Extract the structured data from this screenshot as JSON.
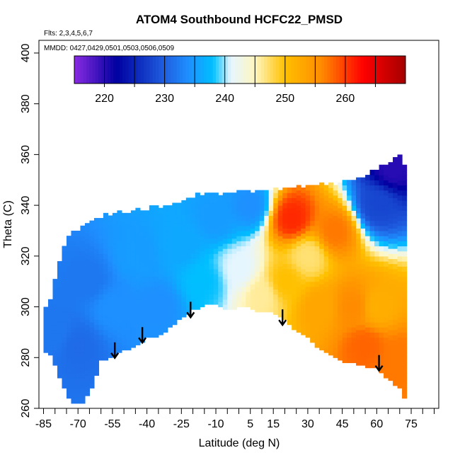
{
  "chart_data": {
    "type": "heatmap",
    "title": "ATOM4 Southbound HCFC22_PMSD",
    "subtitle_flights": "Flts: 2,3,4,5,6,7",
    "subtitle_dates": "MMDD: 0427,0429,0501,0503,0506,0509",
    "xlabel": "Latitude (deg N)",
    "ylabel": "Theta (C)",
    "xlim": [
      -87,
      87
    ],
    "ylim": [
      260,
      405
    ],
    "x_ticks": [
      -85,
      -70,
      -55,
      -40,
      -25,
      -10,
      5,
      15,
      30,
      45,
      60,
      75
    ],
    "x_minor_ticks": [
      -80,
      -75,
      -65,
      -60,
      -50,
      -45,
      -35,
      -30,
      -20,
      -15,
      -5,
      0,
      10,
      20,
      25,
      35,
      40,
      50,
      55,
      65,
      70,
      80,
      85
    ],
    "y_ticks": [
      260,
      280,
      300,
      320,
      340,
      360,
      380,
      400
    ],
    "grid": false,
    "colorbar": {
      "min": 215,
      "max": 270,
      "break_step": 5,
      "labels": [
        220,
        230,
        240,
        250,
        260
      ],
      "placement": "top"
    },
    "colors": {
      "deep_purple": "#8a2be2",
      "dark_blue": "#0000a0",
      "blue": "#1f5fe0",
      "dodger": "#1e90ff",
      "sky": "#00bfff",
      "light": "#e6f6ff",
      "pale_yellow": "#fff6c0",
      "gold": "#ffc000",
      "orange": "#ff8c00",
      "red": "#ff0000",
      "dark_red": "#a50000"
    },
    "arrow_latitudes": [
      -54,
      -42,
      -21,
      19,
      61
    ],
    "arrow_thetas": [
      286,
      292,
      302,
      299,
      281
    ],
    "domain_envelope": {
      "lat": [
        -85,
        -82,
        -80,
        -78,
        -75,
        -72,
        -68,
        -64,
        -60,
        -55,
        -50,
        -45,
        -40,
        -35,
        -30,
        -25,
        -20,
        -15,
        -10,
        -5,
        0,
        5,
        10,
        15,
        20,
        25,
        30,
        35,
        40,
        45,
        50,
        55,
        60,
        65,
        70,
        72
      ],
      "theta_bottom": [
        283,
        281,
        277,
        272,
        266,
        262,
        262,
        268,
        279,
        281,
        283,
        285,
        288,
        289,
        292,
        296,
        299,
        301,
        301,
        299,
        300,
        300,
        298,
        298,
        295,
        291,
        288,
        284,
        281,
        279,
        278,
        277,
        276,
        272,
        268,
        264
      ],
      "theta_top": [
        298,
        303,
        310,
        318,
        325,
        329,
        331,
        333,
        335,
        336,
        337,
        337,
        338,
        339,
        339,
        341,
        343,
        344,
        344,
        343,
        345,
        345,
        345,
        345,
        346,
        346,
        347,
        347,
        348,
        348,
        349,
        351,
        353,
        356,
        359,
        356
      ]
    },
    "value_field_description": "HCFC22 mixing ratio (PMSD), color-coded per colorbar",
    "field_anchors": [
      {
        "lat": -80,
        "theta": 290,
        "value": 232
      },
      {
        "lat": -70,
        "theta": 285,
        "value": 231
      },
      {
        "lat": -65,
        "theta": 310,
        "value": 232
      },
      {
        "lat": -55,
        "theta": 300,
        "value": 234
      },
      {
        "lat": -45,
        "theta": 320,
        "value": 235
      },
      {
        "lat": -35,
        "theta": 300,
        "value": 234
      },
      {
        "lat": -25,
        "theta": 325,
        "value": 236
      },
      {
        "lat": -15,
        "theta": 310,
        "value": 238
      },
      {
        "lat": -10,
        "theta": 335,
        "value": 235
      },
      {
        "lat": 0,
        "theta": 315,
        "value": 241
      },
      {
        "lat": 5,
        "theta": 340,
        "value": 234
      },
      {
        "lat": 10,
        "theta": 305,
        "value": 246
      },
      {
        "lat": 20,
        "theta": 310,
        "value": 250
      },
      {
        "lat": 23,
        "theta": 335,
        "value": 261
      },
      {
        "lat": 30,
        "theta": 320,
        "value": 247
      },
      {
        "lat": 35,
        "theta": 300,
        "value": 253
      },
      {
        "lat": 42,
        "theta": 330,
        "value": 257
      },
      {
        "lat": 50,
        "theta": 300,
        "value": 256
      },
      {
        "lat": 55,
        "theta": 285,
        "value": 258
      },
      {
        "lat": 60,
        "theta": 300,
        "value": 252
      },
      {
        "lat": 60,
        "theta": 340,
        "value": 228
      },
      {
        "lat": 67,
        "theta": 355,
        "value": 220
      },
      {
        "lat": 70,
        "theta": 280,
        "value": 257
      }
    ]
  }
}
